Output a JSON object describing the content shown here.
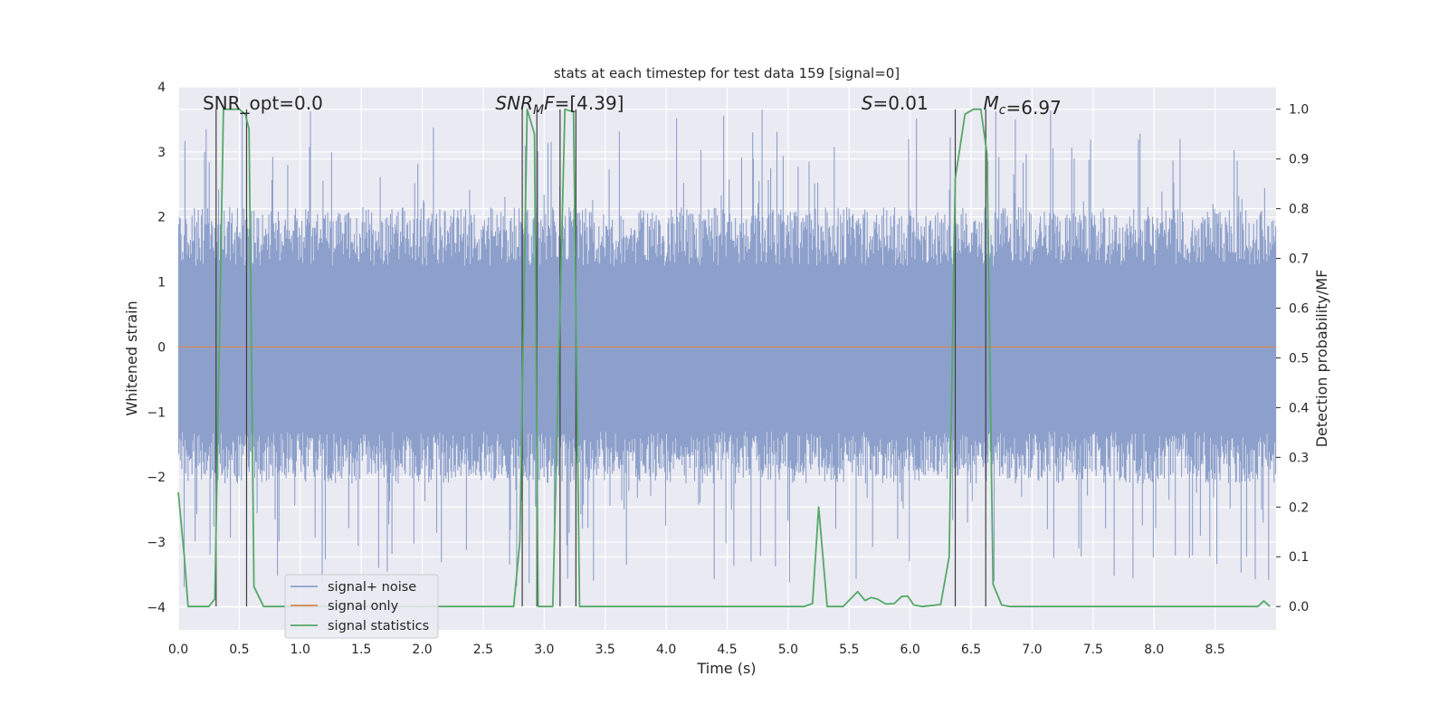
{
  "chart_data": {
    "type": "line",
    "title": "stats at each timestep for test data 159 [signal=0]",
    "xlabel": "Time (s)",
    "ylabel": "Whitened strain",
    "ylabel_right": "Detection probability/MF",
    "xlim": [
      0.0,
      9.0
    ],
    "ylim": [
      -4.35,
      4.0
    ],
    "ylim_right": [
      -0.047,
      1.045
    ],
    "x_ticks": [
      "0.0",
      "0.5",
      "1.0",
      "1.5",
      "2.0",
      "2.5",
      "3.0",
      "3.5",
      "4.0",
      "4.5",
      "5.0",
      "5.5",
      "6.0",
      "6.5",
      "7.0",
      "7.5",
      "8.0",
      "8.5"
    ],
    "y_ticks_left": [
      "4",
      "3",
      "2",
      "1",
      "0",
      "−1",
      "−2",
      "−3",
      "−4"
    ],
    "y_ticks_right": [
      "1.0",
      "0.9",
      "0.8",
      "0.7",
      "0.6",
      "0.5",
      "0.4",
      "0.3",
      "0.2",
      "0.1",
      "0.0"
    ],
    "grid": true,
    "legend_position": "lower-left",
    "series": [
      {
        "name": "signal+ noise",
        "color": "#8da0cb",
        "kind": "noise",
        "envelope_min": -3.7,
        "envelope_max": 3.65
      },
      {
        "name": "signal only",
        "color": "#dd8452",
        "kind": "constant",
        "value": 0.0
      },
      {
        "name": "signal statistics",
        "color": "#55a868",
        "axis": "right",
        "points": [
          [
            0.0,
            0.23
          ],
          [
            0.05,
            0.1
          ],
          [
            0.08,
            0.0
          ],
          [
            0.25,
            0.0
          ],
          [
            0.3,
            0.015
          ],
          [
            0.37,
            1.0
          ],
          [
            0.4,
            1.0
          ],
          [
            0.5,
            1.0
          ],
          [
            0.55,
            0.99
          ],
          [
            0.58,
            0.96
          ],
          [
            0.62,
            0.04
          ],
          [
            0.7,
            0.0
          ],
          [
            1.0,
            0.0
          ],
          [
            1.5,
            0.0
          ],
          [
            2.0,
            0.0
          ],
          [
            2.5,
            0.0
          ],
          [
            2.75,
            0.0
          ],
          [
            2.8,
            0.13
          ],
          [
            2.86,
            1.0
          ],
          [
            2.92,
            0.95
          ],
          [
            2.95,
            0.0
          ],
          [
            3.03,
            0.0
          ],
          [
            3.07,
            0.0
          ],
          [
            3.17,
            1.0
          ],
          [
            3.24,
            0.995
          ],
          [
            3.29,
            0.0
          ],
          [
            3.4,
            0.0
          ],
          [
            4.0,
            0.0
          ],
          [
            4.5,
            0.0
          ],
          [
            5.0,
            0.0
          ],
          [
            5.13,
            0.0
          ],
          [
            5.2,
            0.006
          ],
          [
            5.25,
            0.2
          ],
          [
            5.32,
            0.0
          ],
          [
            5.45,
            0.0
          ],
          [
            5.57,
            0.03
          ],
          [
            5.63,
            0.012
          ],
          [
            5.68,
            0.018
          ],
          [
            5.73,
            0.015
          ],
          [
            5.8,
            0.005
          ],
          [
            5.87,
            0.006
          ],
          [
            5.93,
            0.02
          ],
          [
            5.98,
            0.021
          ],
          [
            6.03,
            0.003
          ],
          [
            6.1,
            0.0
          ],
          [
            6.25,
            0.004
          ],
          [
            6.32,
            0.1
          ],
          [
            6.37,
            0.86
          ],
          [
            6.45,
            0.99
          ],
          [
            6.52,
            1.0
          ],
          [
            6.58,
            1.0
          ],
          [
            6.63,
            0.91
          ],
          [
            6.68,
            0.045
          ],
          [
            6.75,
            0.003
          ],
          [
            6.82,
            0.0
          ],
          [
            7.0,
            0.0
          ],
          [
            7.5,
            0.0
          ],
          [
            8.0,
            0.0
          ],
          [
            8.5,
            0.0
          ],
          [
            8.85,
            0.0
          ],
          [
            8.9,
            0.011
          ],
          [
            8.95,
            0.0
          ]
        ]
      }
    ],
    "vertical_lines": [
      0.31,
      0.56,
      2.82,
      2.94,
      3.13,
      3.26,
      6.37,
      6.62
    ],
    "annotations": [
      {
        "text": "SNR_opt=0.0",
        "x": 0.2,
        "italic": false
      },
      {
        "text": "SNR_MF=[4.39]",
        "x": 2.6,
        "italic": true
      },
      {
        "text": "S=0.01",
        "x": 5.6,
        "italic": true
      },
      {
        "text": "M_c=6.97",
        "x": 6.6,
        "italic": true
      }
    ]
  }
}
